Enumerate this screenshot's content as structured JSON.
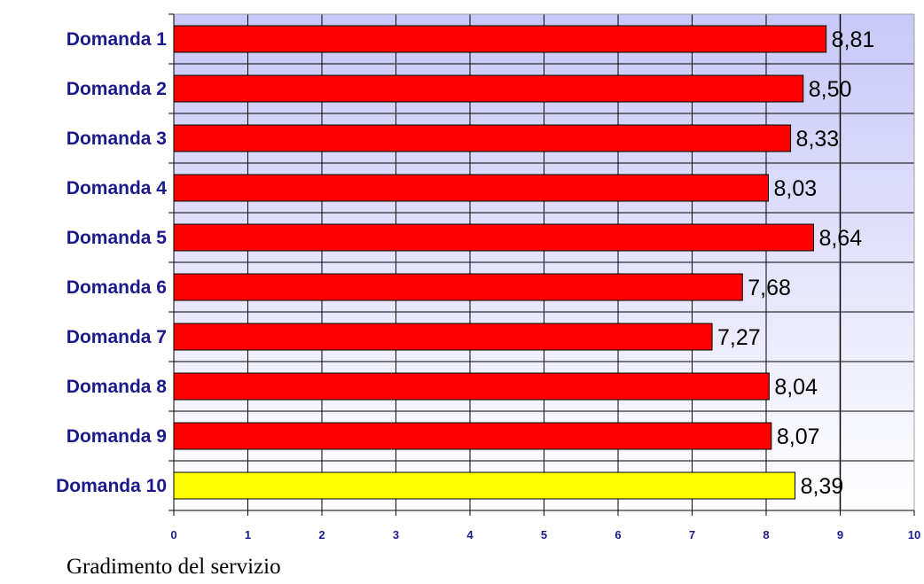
{
  "caption": "Gradimento del servizio",
  "chart_data": {
    "type": "bar",
    "orientation": "horizontal",
    "categories": [
      "Domanda 1",
      "Domanda 2",
      "Domanda 3",
      "Domanda 4",
      "Domanda 5",
      "Domanda 6",
      "Domanda 7",
      "Domanda 8",
      "Domanda 9",
      "Domanda 10"
    ],
    "values": [
      8.81,
      8.5,
      8.33,
      8.03,
      8.64,
      7.68,
      7.27,
      8.04,
      8.07,
      8.39
    ],
    "value_labels": [
      "8,81",
      "8,50",
      "8,33",
      "8,03",
      "8,64",
      "7,68",
      "7,27",
      "8,04",
      "8,07",
      "8,39"
    ],
    "bar_colors": [
      "#ff0000",
      "#ff0000",
      "#ff0000",
      "#ff0000",
      "#ff0000",
      "#ff0000",
      "#ff0000",
      "#ff0000",
      "#ff0000",
      "#ffff00"
    ],
    "xlim": [
      0,
      10
    ],
    "x_ticks": [
      "0",
      "1",
      "2",
      "3",
      "4",
      "5",
      "6",
      "7",
      "8",
      "9",
      "10"
    ],
    "reference_line": 9,
    "grid": true,
    "background_gradient": [
      "#c8c8f8",
      "#ffffff"
    ]
  }
}
